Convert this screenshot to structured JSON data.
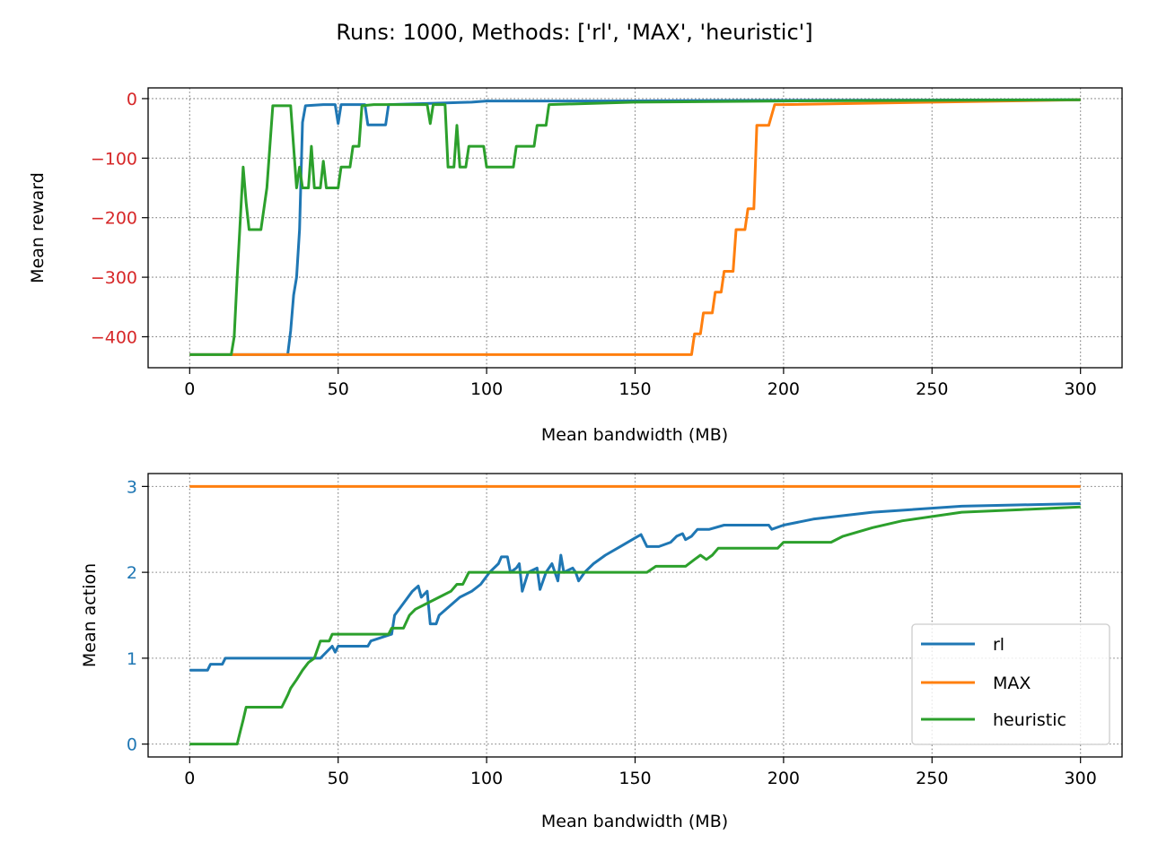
{
  "suptitle": "Runs: 1000, Methods: ['rl', 'MAX', 'heuristic']",
  "colors": {
    "rl": "#1f77b4",
    "MAX": "#ff7f0e",
    "heuristic": "#2ca02c",
    "reward_axis": "#d62728",
    "action_axis": "#1f77b4",
    "grid": "#808080"
  },
  "legend": [
    "rl",
    "MAX",
    "heuristic"
  ],
  "chart_data": [
    {
      "type": "line",
      "xlabel": "Mean bandwidth (MB)",
      "ylabel": "Mean reward",
      "xlim": [
        -14,
        314
      ],
      "ylim": [
        -452,
        18
      ],
      "xticks": [
        0,
        50,
        100,
        150,
        200,
        250,
        300
      ],
      "yticks": [
        0,
        -100,
        -200,
        -300,
        -400
      ],
      "grid": true,
      "series": [
        {
          "name": "rl",
          "points": [
            [
              0,
              -430
            ],
            [
              33,
              -430
            ],
            [
              34,
              -390
            ],
            [
              35,
              -330
            ],
            [
              36,
              -300
            ],
            [
              37,
              -220
            ],
            [
              38,
              -40
            ],
            [
              39,
              -12
            ],
            [
              45,
              -10
            ],
            [
              49,
              -10
            ],
            [
              50,
              -42
            ],
            [
              51,
              -10
            ],
            [
              58,
              -10
            ],
            [
              59,
              -10
            ],
            [
              60,
              -44
            ],
            [
              66,
              -44
            ],
            [
              67,
              -10
            ],
            [
              95,
              -6
            ],
            [
              100,
              -4
            ],
            [
              140,
              -4
            ],
            [
              200,
              -3
            ],
            [
              300,
              -2
            ]
          ]
        },
        {
          "name": "MAX",
          "points": [
            [
              0,
              -430
            ],
            [
              169,
              -430
            ],
            [
              170,
              -395
            ],
            [
              172,
              -395
            ],
            [
              173,
              -360
            ],
            [
              176,
              -360
            ],
            [
              177,
              -325
            ],
            [
              179,
              -325
            ],
            [
              180,
              -290
            ],
            [
              183,
              -290
            ],
            [
              184,
              -220
            ],
            [
              187,
              -220
            ],
            [
              188,
              -185
            ],
            [
              190,
              -185
            ],
            [
              191,
              -45
            ],
            [
              195,
              -45
            ],
            [
              197,
              -10
            ],
            [
              200,
              -10
            ],
            [
              300,
              -2
            ]
          ]
        },
        {
          "name": "heuristic",
          "points": [
            [
              0,
              -430
            ],
            [
              14,
              -430
            ],
            [
              15,
              -400
            ],
            [
              16,
              -300
            ],
            [
              18,
              -115
            ],
            [
              19,
              -175
            ],
            [
              20,
              -220
            ],
            [
              24,
              -220
            ],
            [
              26,
              -150
            ],
            [
              28,
              -12
            ],
            [
              34,
              -12
            ],
            [
              36,
              -150
            ],
            [
              37,
              -115
            ],
            [
              38,
              -150
            ],
            [
              40,
              -150
            ],
            [
              41,
              -80
            ],
            [
              42,
              -150
            ],
            [
              44,
              -150
            ],
            [
              45,
              -105
            ],
            [
              46,
              -150
            ],
            [
              50,
              -150
            ],
            [
              51,
              -115
            ],
            [
              54,
              -115
            ],
            [
              55,
              -80
            ],
            [
              57,
              -80
            ],
            [
              58,
              -12
            ],
            [
              62,
              -10
            ],
            [
              78,
              -10
            ],
            [
              80,
              -10
            ],
            [
              81,
              -42
            ],
            [
              82,
              -10
            ],
            [
              86,
              -10
            ],
            [
              87,
              -115
            ],
            [
              89,
              -115
            ],
            [
              90,
              -45
            ],
            [
              91,
              -115
            ],
            [
              93,
              -115
            ],
            [
              94,
              -80
            ],
            [
              99,
              -80
            ],
            [
              100,
              -115
            ],
            [
              109,
              -115
            ],
            [
              110,
              -80
            ],
            [
              116,
              -80
            ],
            [
              117,
              -45
            ],
            [
              120,
              -45
            ],
            [
              121,
              -10
            ],
            [
              150,
              -6
            ],
            [
              200,
              -4
            ],
            [
              300,
              -2
            ]
          ]
        }
      ]
    },
    {
      "type": "line",
      "xlabel": "Mean bandwidth (MB)",
      "ylabel": "Mean action",
      "xlim": [
        -14,
        314
      ],
      "ylim": [
        -0.15,
        3.15
      ],
      "xticks": [
        0,
        50,
        100,
        150,
        200,
        250,
        300
      ],
      "yticks": [
        0,
        1,
        2,
        3
      ],
      "grid": true,
      "legend_position": "lower right",
      "series": [
        {
          "name": "rl",
          "points": [
            [
              0,
              0.86
            ],
            [
              6,
              0.86
            ],
            [
              7,
              0.93
            ],
            [
              11,
              0.93
            ],
            [
              12,
              1.0
            ],
            [
              44,
              1.0
            ],
            [
              48,
              1.14
            ],
            [
              49,
              1.07
            ],
            [
              50,
              1.14
            ],
            [
              60,
              1.14
            ],
            [
              61,
              1.2
            ],
            [
              68,
              1.28
            ],
            [
              69,
              1.5
            ],
            [
              72,
              1.64
            ],
            [
              75,
              1.78
            ],
            [
              77,
              1.84
            ],
            [
              78,
              1.71
            ],
            [
              80,
              1.78
            ],
            [
              81,
              1.4
            ],
            [
              83,
              1.4
            ],
            [
              84,
              1.5
            ],
            [
              88,
              1.62
            ],
            [
              91,
              1.71
            ],
            [
              95,
              1.78
            ],
            [
              98,
              1.86
            ],
            [
              101,
              2.0
            ],
            [
              104,
              2.1
            ],
            [
              105,
              2.18
            ],
            [
              107,
              2.18
            ],
            [
              108,
              2.0
            ],
            [
              110,
              2.05
            ],
            [
              111,
              2.1
            ],
            [
              112,
              1.78
            ],
            [
              114,
              2.0
            ],
            [
              117,
              2.05
            ],
            [
              118,
              1.8
            ],
            [
              120,
              2.0
            ],
            [
              122,
              2.1
            ],
            [
              124,
              1.9
            ],
            [
              125,
              2.2
            ],
            [
              126,
              2.0
            ],
            [
              129,
              2.05
            ],
            [
              130,
              2.0
            ],
            [
              131,
              1.9
            ],
            [
              133,
              2.0
            ],
            [
              136,
              2.1
            ],
            [
              140,
              2.2
            ],
            [
              145,
              2.3
            ],
            [
              150,
              2.4
            ],
            [
              152,
              2.44
            ],
            [
              154,
              2.3
            ],
            [
              158,
              2.3
            ],
            [
              162,
              2.35
            ],
            [
              164,
              2.42
            ],
            [
              166,
              2.45
            ],
            [
              167,
              2.38
            ],
            [
              169,
              2.42
            ],
            [
              171,
              2.5
            ],
            [
              175,
              2.5
            ],
            [
              180,
              2.55
            ],
            [
              195,
              2.55
            ],
            [
              196,
              2.5
            ],
            [
              200,
              2.55
            ],
            [
              210,
              2.62
            ],
            [
              230,
              2.7
            ],
            [
              260,
              2.77
            ],
            [
              300,
              2.8
            ]
          ]
        },
        {
          "name": "MAX",
          "points": [
            [
              0,
              3.0
            ],
            [
              300,
              3.0
            ]
          ]
        },
        {
          "name": "heuristic",
          "points": [
            [
              0,
              0
            ],
            [
              16,
              0
            ],
            [
              17,
              0.14
            ],
            [
              18,
              0.28
            ],
            [
              19,
              0.43
            ],
            [
              31,
              0.43
            ],
            [
              32,
              0.5
            ],
            [
              33,
              0.57
            ],
            [
              34,
              0.65
            ],
            [
              36,
              0.75
            ],
            [
              38,
              0.86
            ],
            [
              40,
              0.95
            ],
            [
              42,
              1.0
            ],
            [
              44,
              1.2
            ],
            [
              47,
              1.2
            ],
            [
              48,
              1.28
            ],
            [
              67,
              1.28
            ],
            [
              68,
              1.35
            ],
            [
              72,
              1.35
            ],
            [
              74,
              1.5
            ],
            [
              76,
              1.57
            ],
            [
              80,
              1.64
            ],
            [
              84,
              1.71
            ],
            [
              88,
              1.78
            ],
            [
              90,
              1.86
            ],
            [
              92,
              1.86
            ],
            [
              94,
              2.0
            ],
            [
              154,
              2.0
            ],
            [
              157,
              2.07
            ],
            [
              167,
              2.07
            ],
            [
              170,
              2.15
            ],
            [
              172,
              2.2
            ],
            [
              174,
              2.15
            ],
            [
              176,
              2.2
            ],
            [
              178,
              2.28
            ],
            [
              198,
              2.28
            ],
            [
              200,
              2.35
            ],
            [
              216,
              2.35
            ],
            [
              220,
              2.42
            ],
            [
              230,
              2.52
            ],
            [
              240,
              2.6
            ],
            [
              260,
              2.7
            ],
            [
              280,
              2.73
            ],
            [
              300,
              2.76
            ]
          ]
        }
      ]
    }
  ]
}
